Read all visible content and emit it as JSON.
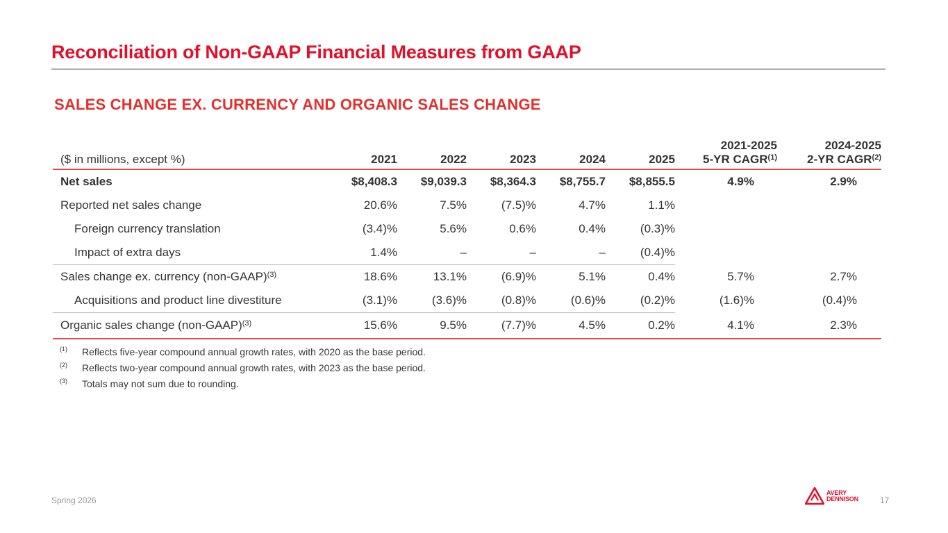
{
  "title": "Reconciliation of Non-GAAP Financial Measures from GAAP",
  "section_title": "SALES CHANGE EX. CURRENCY AND ORGANIC SALES CHANGE",
  "table": {
    "header": {
      "label": "($ in millions, except %)",
      "years": [
        "2021",
        "2022",
        "2023",
        "2024",
        "2025"
      ],
      "cagr5_line1": "2021-2025",
      "cagr5_line2": "5-YR CAGR",
      "cagr5_note": "(1)",
      "cagr2_line1": "2024-2025",
      "cagr2_line2": "2-YR CAGR",
      "cagr2_note": "(2)"
    },
    "rows": [
      {
        "label": "Net sales",
        "note": "",
        "values": [
          "$8,408.3",
          "$9,039.3",
          "$8,364.3",
          "$8,755.7",
          "$8,855.5"
        ],
        "cagr5": "4.9%",
        "cagr2": "2.9%"
      },
      {
        "label": "Reported net sales change",
        "note": "",
        "values": [
          "20.6%",
          "7.5%",
          "(7.5)%",
          "4.7%",
          "1.1%"
        ],
        "cagr5": "",
        "cagr2": ""
      },
      {
        "label": "Foreign currency translation",
        "note": "",
        "values": [
          "(3.4)%",
          "5.6%",
          "0.6%",
          "0.4%",
          "(0.3)%"
        ],
        "cagr5": "",
        "cagr2": ""
      },
      {
        "label": "Impact of extra days",
        "note": "",
        "values": [
          "1.4%",
          "–",
          "–",
          "–",
          "(0.4)%"
        ],
        "cagr5": "",
        "cagr2": ""
      },
      {
        "label": "Sales change ex. currency (non-GAAP)",
        "note": "(3)",
        "values": [
          "18.6%",
          "13.1%",
          "(6.9)%",
          "5.1%",
          "0.4%"
        ],
        "cagr5": "5.7%",
        "cagr2": "2.7%"
      },
      {
        "label": "Acquisitions and product line divestiture",
        "note": "",
        "values": [
          "(3.1)%",
          "(3.6)%",
          "(0.8)%",
          "(0.6)%",
          "(0.2)%"
        ],
        "cagr5": "(1.6)%",
        "cagr2": "(0.4)%"
      },
      {
        "label": "Organic sales change (non-GAAP)",
        "note": "(3)",
        "values": [
          "15.6%",
          "9.5%",
          "(7.7)%",
          "4.5%",
          "0.2%"
        ],
        "cagr5": "4.1%",
        "cagr2": "2.3%"
      }
    ]
  },
  "footnotes": [
    {
      "mark": "(1)",
      "text": "Reflects five-year compound annual growth rates, with 2020 as the base period."
    },
    {
      "mark": "(2)",
      "text": "Reflects two-year compound annual growth rates, with 2023 as the base period."
    },
    {
      "mark": "(3)",
      "text": "Totals may not sum due to rounding."
    }
  ],
  "footer": {
    "left": "Spring 2026",
    "page_number": "17",
    "logo_line1": "AVERY",
    "logo_line2": "DENNISON",
    "logo_icon": "avery-dennison-logo-icon",
    "brand_color": "#e0102a"
  }
}
